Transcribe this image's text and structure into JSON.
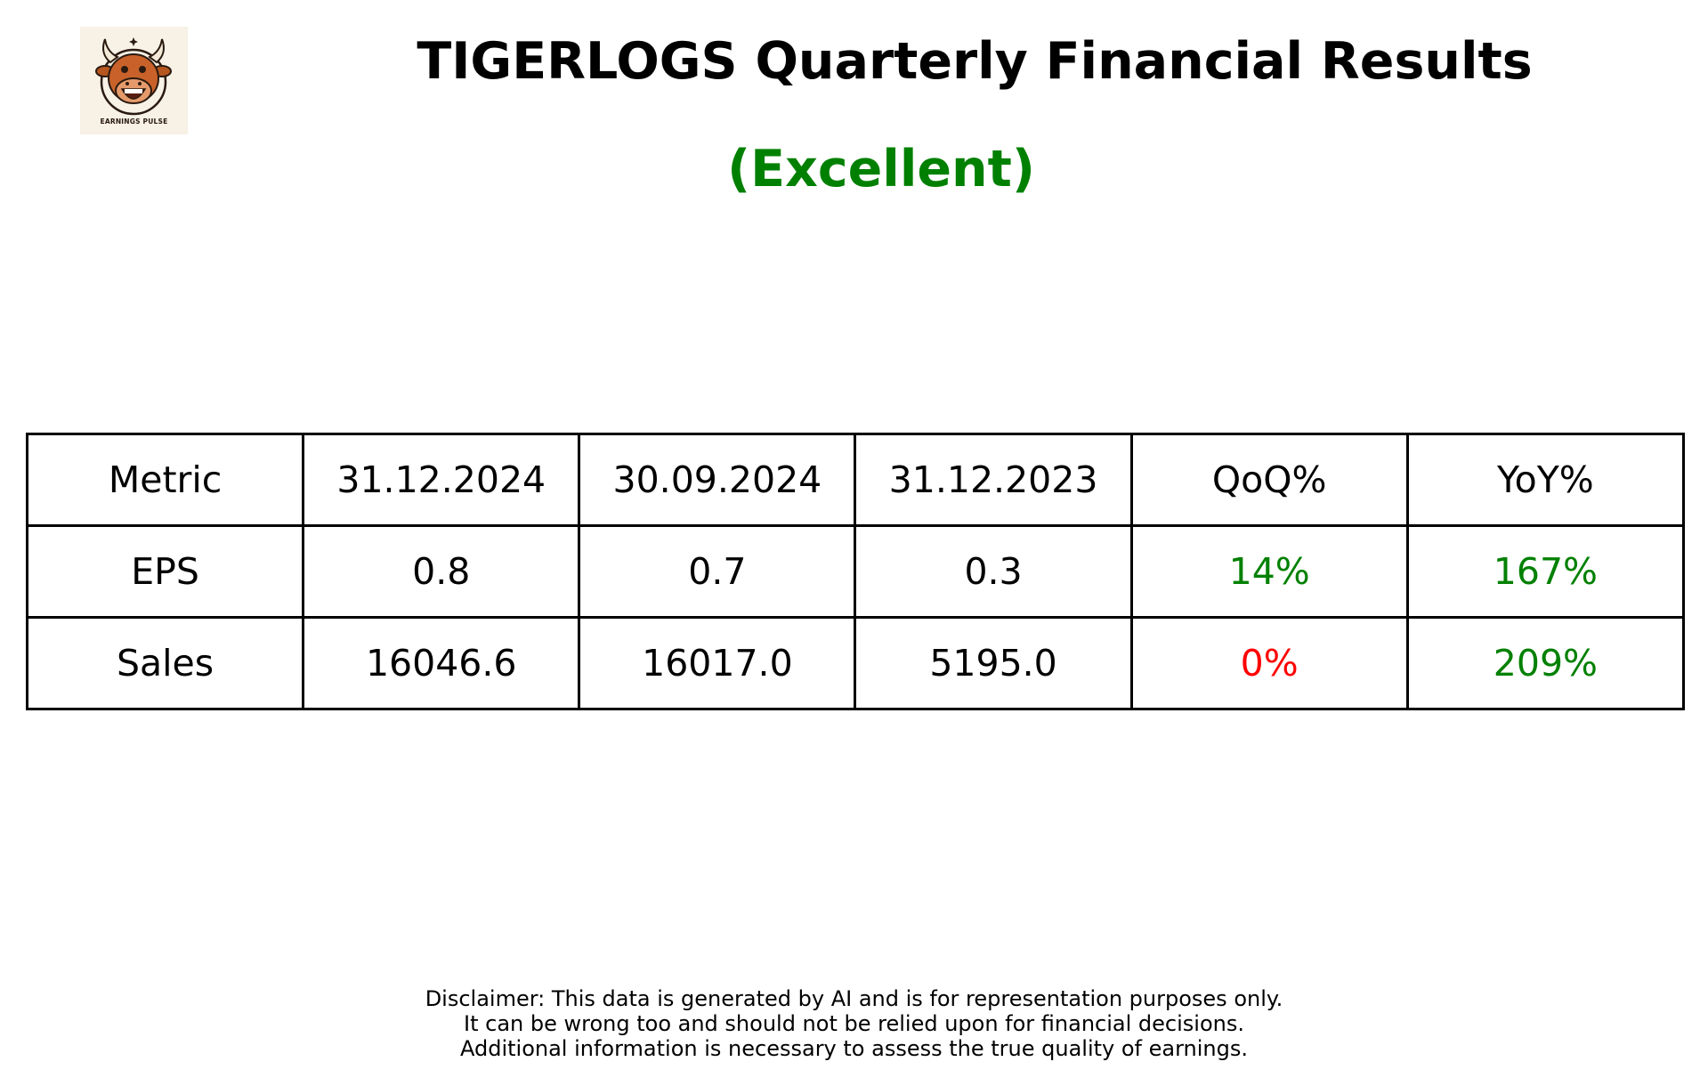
{
  "logo": {
    "text": "EARNINGS PULSE"
  },
  "title": "TIGERLOGS Quarterly Financial Results",
  "rating": "(Excellent)",
  "colors": {
    "rating": "#008000",
    "positive": "#008000",
    "negative": "#ff0000"
  },
  "chart_data": {
    "type": "table",
    "columns": [
      "Metric",
      "31.12.2024",
      "30.09.2024",
      "31.12.2023",
      "QoQ%",
      "YoY%"
    ],
    "rows": [
      {
        "metric": "EPS",
        "q1": "0.8",
        "q2": "0.7",
        "q3": "0.3",
        "qoq": "14%",
        "yoy": "167%",
        "qoq_status": "positive",
        "yoy_status": "positive"
      },
      {
        "metric": "Sales",
        "q1": "16046.6",
        "q2": "16017.0",
        "q3": "5195.0",
        "qoq": "0%",
        "yoy": "209%",
        "qoq_status": "negative",
        "yoy_status": "positive"
      }
    ]
  },
  "disclaimer": [
    "Disclaimer: This data is generated by AI and is for representation purposes only.",
    "It can be wrong too and should not be relied upon for financial decisions.",
    "Additional information is necessary to assess the true quality of earnings."
  ]
}
